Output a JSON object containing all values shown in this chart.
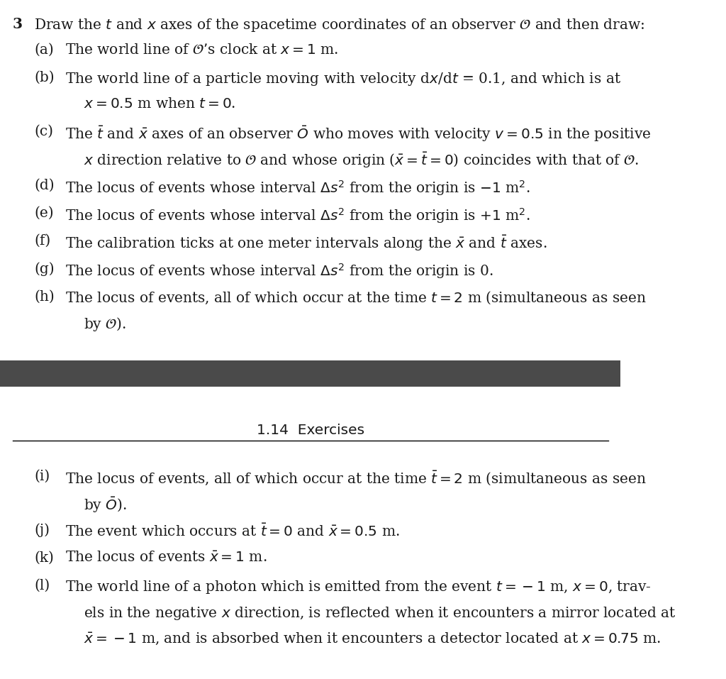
{
  "bg_color": "#ffffff",
  "divider_color": "#4a4a4a",
  "text_color": "#1a1a1a",
  "question_number": "3",
  "intro_line": "Draw the $t$ and $x$ axes of the spacetime coordinates of an observer $\\mathcal{O}$ and then draw:",
  "parts_top": [
    {
      "label": "(a)",
      "lines": [
        "The world line of $\\mathcal{O}$’s clock at $x = 1$ m."
      ]
    },
    {
      "label": "(b)",
      "lines": [
        "The world line of a particle moving with velocity d$x$/d$t$ = 0.1, and which is at",
        "$x = 0.5$ m when $t = 0$."
      ]
    },
    {
      "label": "(c)",
      "lines": [
        "The $\\bar{t}$ and $\\bar{x}$ axes of an observer $\\bar{O}$ who moves with velocity $v = 0.5$ in the positive",
        "$x$ direction relative to $\\mathcal{O}$ and whose origin ($\\bar{x} = \\bar{t} = 0$) coincides with that of $\\mathcal{O}$."
      ]
    },
    {
      "label": "(d)",
      "lines": [
        "The locus of events whose interval $\\Delta s^2$ from the origin is $-1$ m$^2$."
      ]
    },
    {
      "label": "(e)",
      "lines": [
        "The locus of events whose interval $\\Delta s^2$ from the origin is $+1$ m$^2$."
      ]
    },
    {
      "label": "(f)",
      "lines": [
        "The calibration ticks at one meter intervals along the $\\bar{x}$ and $\\bar{t}$ axes."
      ]
    },
    {
      "label": "(g)",
      "lines": [
        "The locus of events whose interval $\\Delta s^2$ from the origin is 0."
      ]
    },
    {
      "label": "(h)",
      "lines": [
        "The locus of events, all of which occur at the time $t = 2$ m (simultaneous as seen",
        "by $\\mathcal{O}$)."
      ]
    }
  ],
  "section_title": "1.14  Exercises",
  "parts_bottom": [
    {
      "label": "(i)",
      "lines": [
        "The locus of events, all of which occur at the time $\\bar{t} = 2$ m (simultaneous as seen",
        "by $\\bar{O}$)."
      ]
    },
    {
      "label": "(j)",
      "lines": [
        "The event which occurs at $\\bar{t} = 0$ and $\\bar{x} = 0.5$ m."
      ]
    },
    {
      "label": "(k)",
      "lines": [
        "The locus of events $\\bar{x} = 1$ m."
      ]
    },
    {
      "label": "(l)",
      "lines": [
        "The world line of a photon which is emitted from the event $t = -1$ m, $x = 0$, trav-",
        "els in the negative $x$ direction, is reflected when it encounters a mirror located at",
        "$\\bar{x} = -1$ m, and is absorbed when it encounters a detector located at $x = 0.75$ m."
      ]
    }
  ],
  "font_size_main": 14.5,
  "font_size_section": 14.5,
  "indent_label": 0.055,
  "indent_text": 0.105,
  "indent_cont": 0.135
}
